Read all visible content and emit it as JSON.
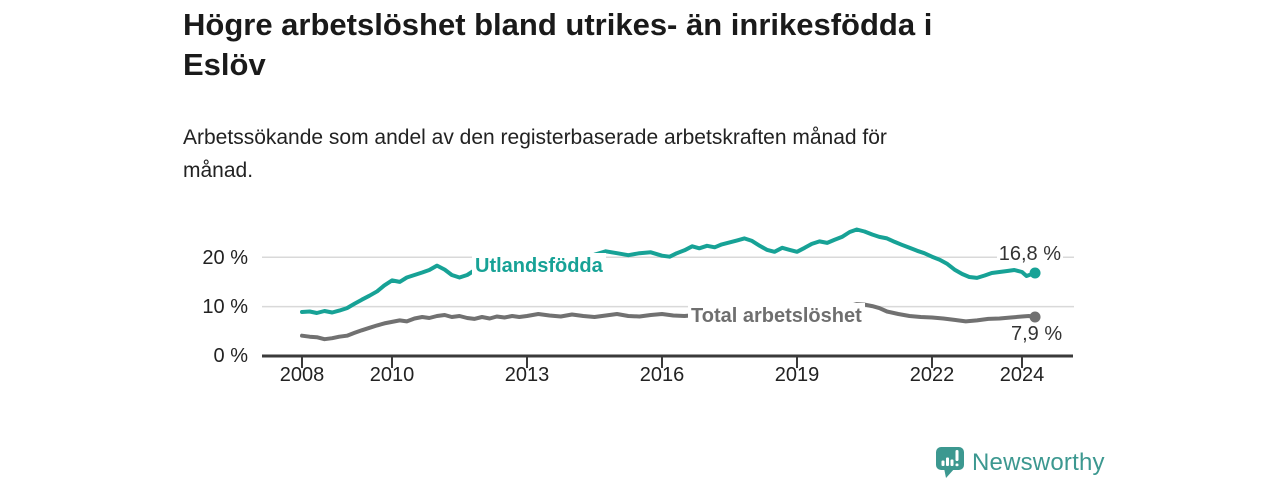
{
  "header": {
    "title": "Högre arbetslöshet bland utrikes- än inrikesfödda i Eslöv",
    "title_lines": [
      "Högre arbetslöshet bland utrikes- än inrikesfödda i",
      "Eslöv"
    ],
    "subtitle": "Arbetssökande som andel av den registerbaserade arbetskraften månad för månad.",
    "subtitle_lines": [
      "Arbetssökande som andel av den registerbaserade arbetskraften månad för",
      "månad."
    ]
  },
  "chart_data": {
    "type": "line",
    "title": "Högre arbetslöshet bland utrikes- än inrikesfödda i Eslöv",
    "subtitle": "Arbetssökande som andel av den registerbaserade arbetskraften månad för månad.",
    "y_unit": "%",
    "xlim": [
      2007.9,
      2025.3
    ],
    "ylim": [
      0,
      28
    ],
    "grid": "horizontal",
    "legend_position": "inline",
    "y_ticks": [
      0,
      10,
      20
    ],
    "y_tick_labels": [
      "0 %",
      "10 %",
      "20 %"
    ],
    "x_ticks": [
      2008,
      2010,
      2013,
      2016,
      2019,
      2022,
      2024
    ],
    "x_tick_labels": [
      "2008",
      "2010",
      "2013",
      "2016",
      "2019",
      "2022",
      "2024"
    ],
    "series": [
      {
        "name": "Utlandsfödda",
        "color": "#17A296",
        "end_value": 16.8,
        "end_label": "16,8 %",
        "points": [
          [
            2008.0,
            8.9
          ],
          [
            2008.17,
            9.0
          ],
          [
            2008.33,
            8.7
          ],
          [
            2008.5,
            9.1
          ],
          [
            2008.67,
            8.8
          ],
          [
            2008.83,
            9.2
          ],
          [
            2009.0,
            9.7
          ],
          [
            2009.17,
            10.6
          ],
          [
            2009.33,
            11.4
          ],
          [
            2009.5,
            12.2
          ],
          [
            2009.67,
            13.1
          ],
          [
            2009.83,
            14.3
          ],
          [
            2010.0,
            15.3
          ],
          [
            2010.17,
            15.0
          ],
          [
            2010.33,
            15.9
          ],
          [
            2010.5,
            16.4
          ],
          [
            2010.67,
            16.9
          ],
          [
            2010.83,
            17.4
          ],
          [
            2011.0,
            18.3
          ],
          [
            2011.17,
            17.5
          ],
          [
            2011.33,
            16.4
          ],
          [
            2011.5,
            15.9
          ],
          [
            2011.67,
            16.4
          ],
          [
            2011.83,
            17.3
          ],
          [
            2012.0,
            16.9
          ],
          [
            2012.17,
            16.5
          ],
          [
            2012.33,
            16.2
          ],
          [
            2012.5,
            16.7
          ],
          [
            2012.67,
            17.1
          ],
          [
            2012.83,
            17.0
          ],
          [
            2013.0,
            17.4
          ],
          [
            2013.25,
            17.8
          ],
          [
            2013.5,
            18.2
          ],
          [
            2013.75,
            18.7
          ],
          [
            2014.0,
            19.1
          ],
          [
            2014.25,
            19.7
          ],
          [
            2014.5,
            20.5
          ],
          [
            2014.75,
            21.2
          ],
          [
            2015.0,
            20.8
          ],
          [
            2015.25,
            20.4
          ],
          [
            2015.5,
            20.8
          ],
          [
            2015.75,
            21.0
          ],
          [
            2016.0,
            20.3
          ],
          [
            2016.17,
            20.1
          ],
          [
            2016.33,
            20.8
          ],
          [
            2016.5,
            21.4
          ],
          [
            2016.67,
            22.2
          ],
          [
            2016.83,
            21.8
          ],
          [
            2017.0,
            22.3
          ],
          [
            2017.17,
            22.0
          ],
          [
            2017.33,
            22.6
          ],
          [
            2017.5,
            23.0
          ],
          [
            2017.67,
            23.4
          ],
          [
            2017.83,
            23.8
          ],
          [
            2018.0,
            23.3
          ],
          [
            2018.17,
            22.3
          ],
          [
            2018.33,
            21.5
          ],
          [
            2018.5,
            21.1
          ],
          [
            2018.67,
            21.9
          ],
          [
            2018.83,
            21.5
          ],
          [
            2019.0,
            21.1
          ],
          [
            2019.17,
            21.9
          ],
          [
            2019.33,
            22.7
          ],
          [
            2019.5,
            23.2
          ],
          [
            2019.67,
            22.9
          ],
          [
            2019.83,
            23.5
          ],
          [
            2020.0,
            24.1
          ],
          [
            2020.17,
            25.1
          ],
          [
            2020.33,
            25.6
          ],
          [
            2020.5,
            25.2
          ],
          [
            2020.67,
            24.6
          ],
          [
            2020.83,
            24.1
          ],
          [
            2021.0,
            23.8
          ],
          [
            2021.17,
            23.1
          ],
          [
            2021.33,
            22.5
          ],
          [
            2021.5,
            21.9
          ],
          [
            2021.67,
            21.3
          ],
          [
            2021.83,
            20.8
          ],
          [
            2022.0,
            20.1
          ],
          [
            2022.17,
            19.5
          ],
          [
            2022.33,
            18.7
          ],
          [
            2022.5,
            17.5
          ],
          [
            2022.67,
            16.6
          ],
          [
            2022.83,
            16.0
          ],
          [
            2023.0,
            15.8
          ],
          [
            2023.17,
            16.3
          ],
          [
            2023.33,
            16.8
          ],
          [
            2023.5,
            17.0
          ],
          [
            2023.67,
            17.2
          ],
          [
            2023.83,
            17.4
          ],
          [
            2024.0,
            17.0
          ],
          [
            2024.1,
            16.2
          ],
          [
            2024.29,
            16.8
          ]
        ]
      },
      {
        "name": "Total arbetslöshet",
        "color": "#717171",
        "end_value": 7.9,
        "end_label": "7,9 %",
        "points": [
          [
            2008.0,
            4.1
          ],
          [
            2008.17,
            3.9
          ],
          [
            2008.33,
            3.8
          ],
          [
            2008.5,
            3.4
          ],
          [
            2008.67,
            3.6
          ],
          [
            2008.83,
            3.9
          ],
          [
            2009.0,
            4.1
          ],
          [
            2009.17,
            4.7
          ],
          [
            2009.33,
            5.2
          ],
          [
            2009.5,
            5.7
          ],
          [
            2009.67,
            6.2
          ],
          [
            2009.83,
            6.6
          ],
          [
            2010.0,
            6.9
          ],
          [
            2010.17,
            7.2
          ],
          [
            2010.33,
            7.0
          ],
          [
            2010.5,
            7.6
          ],
          [
            2010.67,
            7.9
          ],
          [
            2010.83,
            7.7
          ],
          [
            2011.0,
            8.1
          ],
          [
            2011.17,
            8.3
          ],
          [
            2011.33,
            7.9
          ],
          [
            2011.5,
            8.1
          ],
          [
            2011.67,
            7.7
          ],
          [
            2011.83,
            7.5
          ],
          [
            2012.0,
            7.9
          ],
          [
            2012.17,
            7.6
          ],
          [
            2012.33,
            8.0
          ],
          [
            2012.5,
            7.8
          ],
          [
            2012.67,
            8.1
          ],
          [
            2012.83,
            7.9
          ],
          [
            2013.0,
            8.1
          ],
          [
            2013.25,
            8.5
          ],
          [
            2013.5,
            8.2
          ],
          [
            2013.75,
            8.0
          ],
          [
            2014.0,
            8.4
          ],
          [
            2014.25,
            8.1
          ],
          [
            2014.5,
            7.9
          ],
          [
            2014.75,
            8.2
          ],
          [
            2015.0,
            8.5
          ],
          [
            2015.25,
            8.1
          ],
          [
            2015.5,
            8.0
          ],
          [
            2015.75,
            8.3
          ],
          [
            2016.0,
            8.5
          ],
          [
            2016.25,
            8.2
          ],
          [
            2016.5,
            8.1
          ],
          [
            2016.75,
            8.3
          ],
          [
            2017.0,
            8.5
          ],
          [
            2017.25,
            8.4
          ],
          [
            2017.5,
            8.6
          ],
          [
            2017.75,
            8.5
          ],
          [
            2018.0,
            8.6
          ],
          [
            2018.25,
            8.4
          ],
          [
            2018.5,
            8.5
          ],
          [
            2018.75,
            8.4
          ],
          [
            2019.0,
            8.3
          ],
          [
            2019.25,
            8.5
          ],
          [
            2019.5,
            8.6
          ],
          [
            2019.75,
            8.8
          ],
          [
            2020.0,
            9.3
          ],
          [
            2020.17,
            10.1
          ],
          [
            2020.33,
            10.5
          ],
          [
            2020.5,
            10.4
          ],
          [
            2020.67,
            10.1
          ],
          [
            2020.83,
            9.7
          ],
          [
            2021.0,
            9.0
          ],
          [
            2021.25,
            8.5
          ],
          [
            2021.5,
            8.1
          ],
          [
            2021.75,
            7.9
          ],
          [
            2022.0,
            7.8
          ],
          [
            2022.25,
            7.6
          ],
          [
            2022.5,
            7.3
          ],
          [
            2022.75,
            7.0
          ],
          [
            2023.0,
            7.2
          ],
          [
            2023.25,
            7.5
          ],
          [
            2023.5,
            7.6
          ],
          [
            2023.75,
            7.8
          ],
          [
            2024.0,
            8.0
          ],
          [
            2024.15,
            8.1
          ],
          [
            2024.29,
            7.9
          ]
        ]
      }
    ]
  },
  "branding": {
    "text": "Newsworthy",
    "color": "#3C9890",
    "icon": "newsworthy-pin-bar-chart-icon"
  },
  "colors": {
    "background": "#FFFFFF",
    "axis": "#3A3A3A",
    "gridline": "#D9D9D9",
    "title_text": "#1A1A1A",
    "value_label": "#333333"
  }
}
